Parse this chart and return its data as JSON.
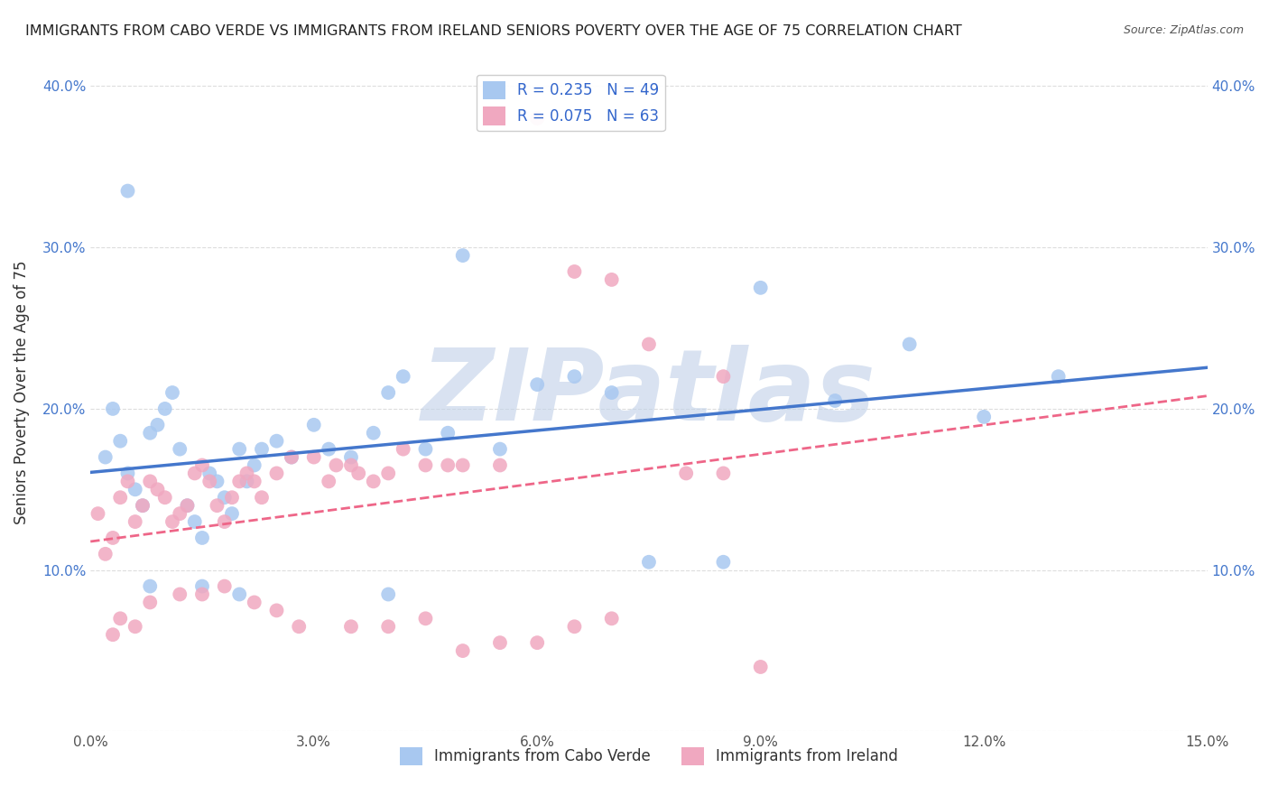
{
  "title": "IMMIGRANTS FROM CABO VERDE VS IMMIGRANTS FROM IRELAND SENIORS POVERTY OVER THE AGE OF 75 CORRELATION CHART",
  "source": "Source: ZipAtlas.com",
  "ylabel": "Seniors Poverty Over the Age of 75",
  "xlabel": "",
  "xlim": [
    0.0,
    0.15
  ],
  "ylim": [
    0.0,
    0.42
  ],
  "xticks": [
    0.0,
    0.03,
    0.06,
    0.09,
    0.12,
    0.15
  ],
  "xtick_labels": [
    "0.0%",
    "3.0%",
    "6.0%",
    "9.0%",
    "12.0%",
    "15.0%"
  ],
  "yticks": [
    0.0,
    0.1,
    0.2,
    0.3,
    0.4
  ],
  "ytick_labels_left": [
    "",
    "10.0%",
    "20.0%",
    "30.0%",
    "40.0%"
  ],
  "ytick_labels_right": [
    "",
    "10.0%",
    "20.0%",
    "30.0%",
    "40.0%"
  ],
  "cabo_verde_R": 0.235,
  "cabo_verde_N": 49,
  "ireland_R": 0.075,
  "ireland_N": 63,
  "cabo_verde_color": "#a8c8f0",
  "ireland_color": "#f0a8c0",
  "cabo_verde_line_color": "#4477cc",
  "ireland_line_color": "#ee6688",
  "watermark": "ZIPatlas",
  "watermark_color": "#c0d0e8",
  "background_color": "#ffffff",
  "grid_color": "#dddddd",
  "cabo_verde_x": [
    0.002,
    0.003,
    0.004,
    0.005,
    0.006,
    0.007,
    0.008,
    0.009,
    0.01,
    0.011,
    0.012,
    0.013,
    0.014,
    0.015,
    0.016,
    0.017,
    0.018,
    0.019,
    0.02,
    0.021,
    0.022,
    0.023,
    0.025,
    0.027,
    0.03,
    0.032,
    0.035,
    0.038,
    0.04,
    0.042,
    0.045,
    0.048,
    0.05,
    0.055,
    0.06,
    0.065,
    0.07,
    0.075,
    0.085,
    0.09,
    0.1,
    0.11,
    0.12,
    0.13,
    0.005,
    0.008,
    0.015,
    0.02,
    0.04
  ],
  "cabo_verde_y": [
    0.17,
    0.2,
    0.18,
    0.16,
    0.15,
    0.14,
    0.185,
    0.19,
    0.2,
    0.21,
    0.175,
    0.14,
    0.13,
    0.12,
    0.16,
    0.155,
    0.145,
    0.135,
    0.175,
    0.155,
    0.165,
    0.175,
    0.18,
    0.17,
    0.19,
    0.175,
    0.17,
    0.185,
    0.21,
    0.22,
    0.175,
    0.185,
    0.295,
    0.175,
    0.215,
    0.22,
    0.21,
    0.105,
    0.105,
    0.275,
    0.205,
    0.24,
    0.195,
    0.22,
    0.335,
    0.09,
    0.09,
    0.085,
    0.085
  ],
  "ireland_x": [
    0.001,
    0.002,
    0.003,
    0.004,
    0.005,
    0.006,
    0.007,
    0.008,
    0.009,
    0.01,
    0.011,
    0.012,
    0.013,
    0.014,
    0.015,
    0.016,
    0.017,
    0.018,
    0.019,
    0.02,
    0.021,
    0.022,
    0.023,
    0.025,
    0.027,
    0.03,
    0.032,
    0.033,
    0.035,
    0.036,
    0.038,
    0.04,
    0.042,
    0.045,
    0.048,
    0.05,
    0.055,
    0.06,
    0.065,
    0.07,
    0.075,
    0.085,
    0.003,
    0.004,
    0.006,
    0.008,
    0.012,
    0.015,
    0.018,
    0.022,
    0.025,
    0.028,
    0.035,
    0.04,
    0.045,
    0.05,
    0.055,
    0.06,
    0.065,
    0.07,
    0.08,
    0.085,
    0.09
  ],
  "ireland_y": [
    0.135,
    0.11,
    0.12,
    0.145,
    0.155,
    0.13,
    0.14,
    0.155,
    0.15,
    0.145,
    0.13,
    0.135,
    0.14,
    0.16,
    0.165,
    0.155,
    0.14,
    0.13,
    0.145,
    0.155,
    0.16,
    0.155,
    0.145,
    0.16,
    0.17,
    0.17,
    0.155,
    0.165,
    0.165,
    0.16,
    0.155,
    0.16,
    0.175,
    0.165,
    0.165,
    0.165,
    0.165,
    0.38,
    0.285,
    0.28,
    0.24,
    0.22,
    0.06,
    0.07,
    0.065,
    0.08,
    0.085,
    0.085,
    0.09,
    0.08,
    0.075,
    0.065,
    0.065,
    0.065,
    0.07,
    0.05,
    0.055,
    0.055,
    0.065,
    0.07,
    0.16,
    0.16,
    0.04
  ]
}
